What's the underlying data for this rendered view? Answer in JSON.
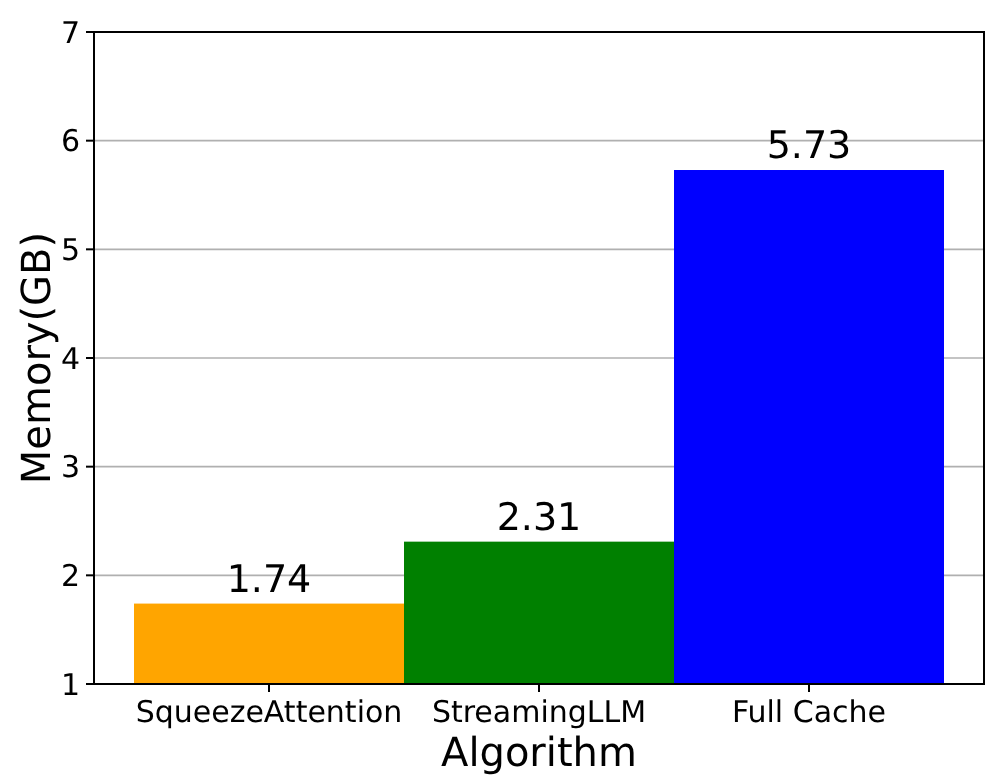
{
  "chart_data": {
    "type": "bar",
    "xlabel": "Algorithm",
    "ylabel": "Memory(GB)",
    "categories": [
      "SqueezeAttention",
      "StreamingLLM",
      "Full Cache"
    ],
    "values": [
      1.74,
      2.31,
      5.73
    ],
    "colors": [
      "#ffa500",
      "#008000",
      "#0000ff"
    ],
    "ylim": [
      1,
      7
    ],
    "yticks": [
      1,
      2,
      3,
      4,
      5,
      6,
      7
    ],
    "grid": "y",
    "data_labels": true
  }
}
